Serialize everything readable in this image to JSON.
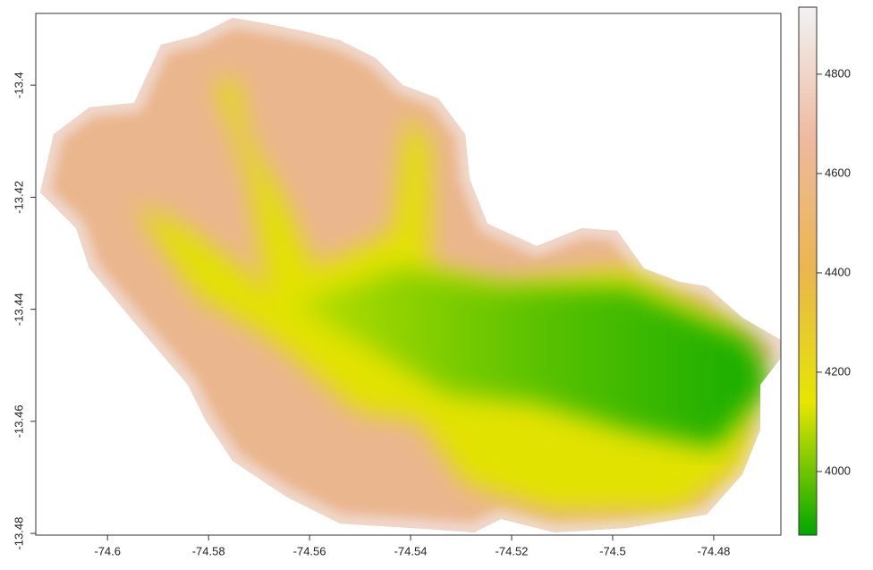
{
  "chart_data": {
    "type": "raster",
    "xlim": [
      -74.6142,
      -74.4667
    ],
    "ylim": [
      -13.4803,
      -13.3872
    ],
    "xticks": [
      -74.6,
      -74.58,
      -74.56,
      -74.54,
      -74.52,
      -74.5,
      -74.48
    ],
    "yticks": [
      -13.4,
      -13.42,
      -13.44,
      -13.46,
      -13.48
    ],
    "zlim": [
      3872,
      4935
    ],
    "zticks": [
      4000,
      4200,
      4400,
      4600,
      4800
    ],
    "colors": [
      "#00A600",
      "#E6E600",
      "#EAB64E",
      "#EEB99F",
      "#F2F2F2"
    ]
  }
}
